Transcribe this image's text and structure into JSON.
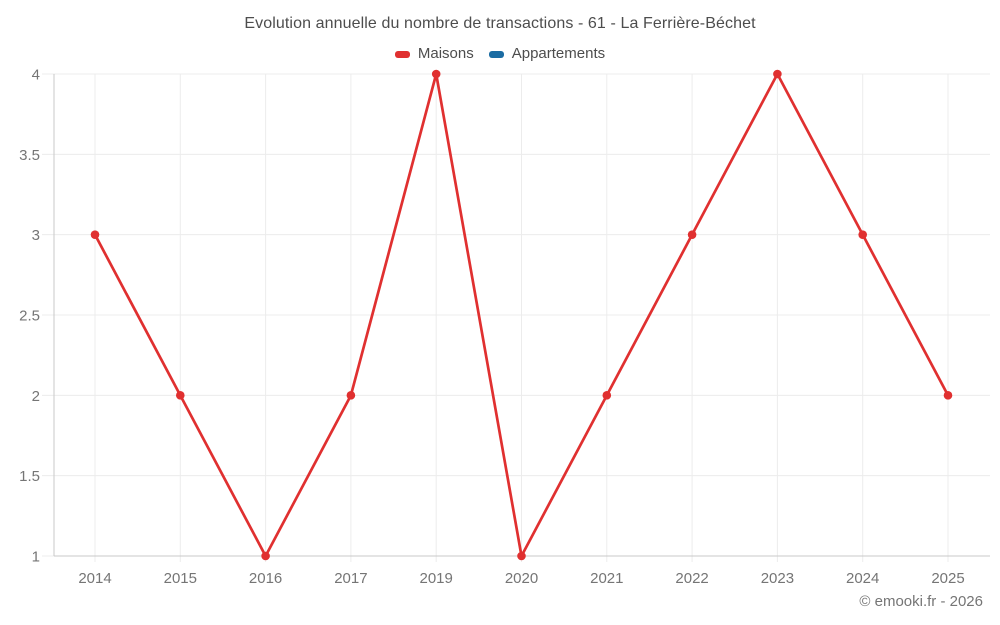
{
  "header": {
    "title": "Evolution annuelle du nombre de transactions - 61 - La Ferrière-Béchet"
  },
  "legend": {
    "items": [
      {
        "label": "Maisons",
        "color": "#e03030"
      },
      {
        "label": "Appartements",
        "color": "#1b6ca3"
      }
    ]
  },
  "chart_data": {
    "type": "line",
    "title": "Evolution annuelle du nombre de transactions - 61 - La Ferrière-Béchet",
    "categories": [
      "2014",
      "2015",
      "2016",
      "2017",
      "2019",
      "2020",
      "2021",
      "2022",
      "2023",
      "2024",
      "2025"
    ],
    "series": [
      {
        "name": "Maisons",
        "color": "#e03030",
        "values": [
          3,
          2,
          1,
          2,
          4,
          1,
          2,
          3,
          4,
          3,
          2
        ]
      },
      {
        "name": "Appartements",
        "color": "#1b6ca3",
        "values": []
      }
    ],
    "ylim": [
      1,
      4
    ],
    "yticks": [
      4,
      3.5,
      3,
      2.5,
      2,
      1.5,
      1
    ],
    "grid": true,
    "legend_position": "top",
    "colors": {
      "grid": "#ececec",
      "axis": "#c9c9c9",
      "tick_label": "#757575"
    }
  },
  "footer": {
    "credit": "© emooki.fr - 2026"
  }
}
